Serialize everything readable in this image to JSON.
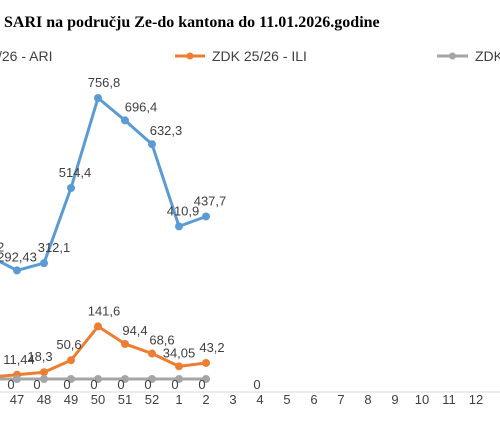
{
  "page": {
    "title_line": "SARI na području Ze-do kantona do 11.01.2026.godine"
  },
  "chart_data": {
    "type": "line",
    "title": "SARI na području Ze-do kantona do 11.01.2026.godine",
    "xlabel": "",
    "ylabel": "",
    "ylim": [
      0,
      800
    ],
    "grid": false,
    "legend_position": "top",
    "categories": [
      "47",
      "48",
      "49",
      "50",
      "51",
      "52",
      "1",
      "2",
      "3",
      "4",
      "5",
      "6",
      "7",
      "8",
      "9",
      "10",
      "11",
      "12"
    ],
    "series": [
      {
        "name": "/26 - ARI",
        "color": "#5b9bd5",
        "values": [
          292.43,
          312.1,
          514.4,
          756.8,
          696.4,
          632.3,
          410.9,
          437.7,
          null,
          null,
          null,
          null,
          null,
          null,
          null,
          null,
          null,
          null
        ],
        "labels": [
          "292,43",
          "312,1",
          "514,4",
          "756,8",
          "696,4",
          "632,3",
          "410,9",
          "437,7",
          "",
          "",
          "",
          "",
          "",
          "",
          "",
          "",
          "",
          ""
        ],
        "offscreen_label": "2"
      },
      {
        "name": "ZDK 25/26 - ILI",
        "color": "#ed7d31",
        "values": [
          11.44,
          18.3,
          50.6,
          141.6,
          94.4,
          68.6,
          34.05,
          43.2,
          null,
          null,
          null,
          null,
          null,
          null,
          null,
          null,
          null,
          null
        ],
        "labels": [
          "11,44",
          "18,3",
          "50,6",
          "141,6",
          "94,4",
          "68,6",
          "34,05",
          "43,2",
          "",
          "",
          "",
          "",
          "",
          "",
          "",
          "",
          "",
          ""
        ]
      },
      {
        "name": "ZDK",
        "color": "#a5a5a5",
        "values": [
          0,
          0,
          0,
          0,
          0,
          0,
          0,
          0,
          null,
          null,
          null,
          null,
          null,
          null,
          null,
          null,
          null,
          null
        ],
        "labels": [
          "0",
          "0",
          "0",
          "0",
          "0",
          "0",
          "0",
          "0",
          "0",
          "",
          "",
          "",
          "",
          "",
          "",
          "",
          "",
          ""
        ]
      }
    ]
  }
}
